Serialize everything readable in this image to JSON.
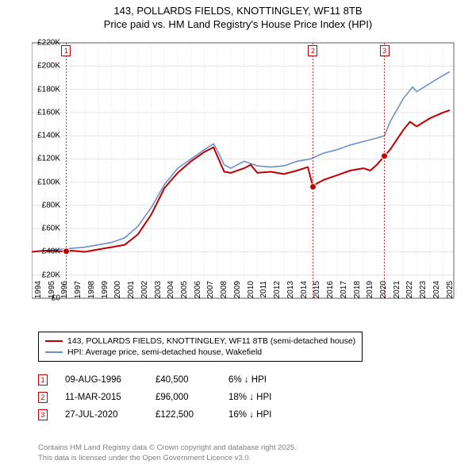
{
  "title_line1": "143, POLLARDS FIELDS, KNOTTINGLEY, WF11 8TB",
  "title_line2": "Price paid vs. HM Land Registry's House Price Index (HPI)",
  "chart": {
    "type": "line",
    "background_color": "#ffffff",
    "grid_color": "#e4e4e4",
    "axis_color": "#000000",
    "x_years": [
      1994,
      1995,
      1996,
      1997,
      1998,
      1999,
      2000,
      2001,
      2002,
      2003,
      2004,
      2005,
      2006,
      2007,
      2008,
      2009,
      2010,
      2011,
      2012,
      2013,
      2014,
      2015,
      2016,
      2017,
      2018,
      2019,
      2020,
      2021,
      2022,
      2023,
      2024,
      2025
    ],
    "xlim": [
      1994,
      2025.8
    ],
    "y_ticks": [
      0,
      20000,
      40000,
      60000,
      80000,
      100000,
      120000,
      140000,
      160000,
      180000,
      200000,
      220000
    ],
    "y_tick_labels": [
      "£0",
      "£20K",
      "£40K",
      "£60K",
      "£80K",
      "£100K",
      "£120K",
      "£140K",
      "£160K",
      "£180K",
      "£200K",
      "£220K"
    ],
    "ylim": [
      0,
      220000
    ],
    "series": [
      {
        "name": "price_paid",
        "color": "#c00000",
        "line_width": 2,
        "points": [
          [
            1994,
            40000
          ],
          [
            1995,
            41000
          ],
          [
            1996,
            40500
          ],
          [
            1996.6,
            40500
          ],
          [
            1997,
            41000
          ],
          [
            1998,
            40000
          ],
          [
            1999,
            42000
          ],
          [
            2000,
            44000
          ],
          [
            2001,
            46000
          ],
          [
            2002,
            55000
          ],
          [
            2003,
            72000
          ],
          [
            2004,
            95000
          ],
          [
            2005,
            108000
          ],
          [
            2006,
            118000
          ],
          [
            2007,
            126000
          ],
          [
            2007.7,
            130000
          ],
          [
            2008,
            122000
          ],
          [
            2008.5,
            109000
          ],
          [
            2009,
            108000
          ],
          [
            2010,
            112000
          ],
          [
            2010.5,
            115000
          ],
          [
            2011,
            108000
          ],
          [
            2012,
            109000
          ],
          [
            2013,
            107000
          ],
          [
            2014,
            110000
          ],
          [
            2014.8,
            113000
          ],
          [
            2015.19,
            96000
          ],
          [
            2015.5,
            99000
          ],
          [
            2016,
            102000
          ],
          [
            2017,
            106000
          ],
          [
            2018,
            110000
          ],
          [
            2019,
            112000
          ],
          [
            2019.5,
            110000
          ],
          [
            2020,
            115000
          ],
          [
            2020.57,
            122500
          ],
          [
            2021,
            128000
          ],
          [
            2022,
            145000
          ],
          [
            2022.5,
            152000
          ],
          [
            2023,
            148000
          ],
          [
            2024,
            155000
          ],
          [
            2025,
            160000
          ],
          [
            2025.5,
            162000
          ]
        ]
      },
      {
        "name": "hpi",
        "color": "#6b8fc9",
        "line_width": 1.6,
        "points": [
          [
            1994,
            40000
          ],
          [
            1995,
            41000
          ],
          [
            1996,
            42000
          ],
          [
            1997,
            43000
          ],
          [
            1998,
            44000
          ],
          [
            1999,
            46000
          ],
          [
            2000,
            48000
          ],
          [
            2001,
            52000
          ],
          [
            2002,
            62000
          ],
          [
            2003,
            78000
          ],
          [
            2004,
            98000
          ],
          [
            2005,
            112000
          ],
          [
            2006,
            120000
          ],
          [
            2007,
            128000
          ],
          [
            2007.7,
            133000
          ],
          [
            2008,
            127000
          ],
          [
            2008.5,
            115000
          ],
          [
            2009,
            112000
          ],
          [
            2010,
            118000
          ],
          [
            2011,
            114000
          ],
          [
            2012,
            113000
          ],
          [
            2013,
            114000
          ],
          [
            2014,
            118000
          ],
          [
            2015,
            120000
          ],
          [
            2016,
            125000
          ],
          [
            2017,
            128000
          ],
          [
            2018,
            132000
          ],
          [
            2019,
            135000
          ],
          [
            2020,
            138000
          ],
          [
            2020.57,
            140000
          ],
          [
            2021,
            152000
          ],
          [
            2022,
            172000
          ],
          [
            2022.7,
            182000
          ],
          [
            2023,
            178000
          ],
          [
            2024,
            185000
          ],
          [
            2025,
            192000
          ],
          [
            2025.5,
            195000
          ]
        ]
      }
    ],
    "sale_markers": [
      {
        "n": "1",
        "x": 1996.6,
        "y": 40500,
        "color": "#c00000"
      },
      {
        "n": "2",
        "x": 2015.19,
        "y": 96000,
        "color": "#c00000"
      },
      {
        "n": "3",
        "x": 2020.57,
        "y": 122500,
        "color": "#c00000"
      }
    ],
    "marker_label_top_y": 218000
  },
  "legend": {
    "items": [
      {
        "color": "#c00000",
        "label": "143, POLLARDS FIELDS, KNOTTINGLEY, WF11 8TB (semi-detached house)"
      },
      {
        "color": "#6b8fc9",
        "label": "HPI: Average price, semi-detached house, Wakefield"
      }
    ]
  },
  "sales": [
    {
      "n": "1",
      "color": "#c00000",
      "date": "09-AUG-1996",
      "price": "£40,500",
      "delta": "6% ↓ HPI"
    },
    {
      "n": "2",
      "color": "#c00000",
      "date": "11-MAR-2015",
      "price": "£96,000",
      "delta": "18% ↓ HPI"
    },
    {
      "n": "3",
      "color": "#c00000",
      "date": "27-JUL-2020",
      "price": "£122,500",
      "delta": "16% ↓ HPI"
    }
  ],
  "footer_line1": "Contains HM Land Registry data © Crown copyright and database right 2025.",
  "footer_line2": "This data is licensed under the Open Government Licence v3.0."
}
